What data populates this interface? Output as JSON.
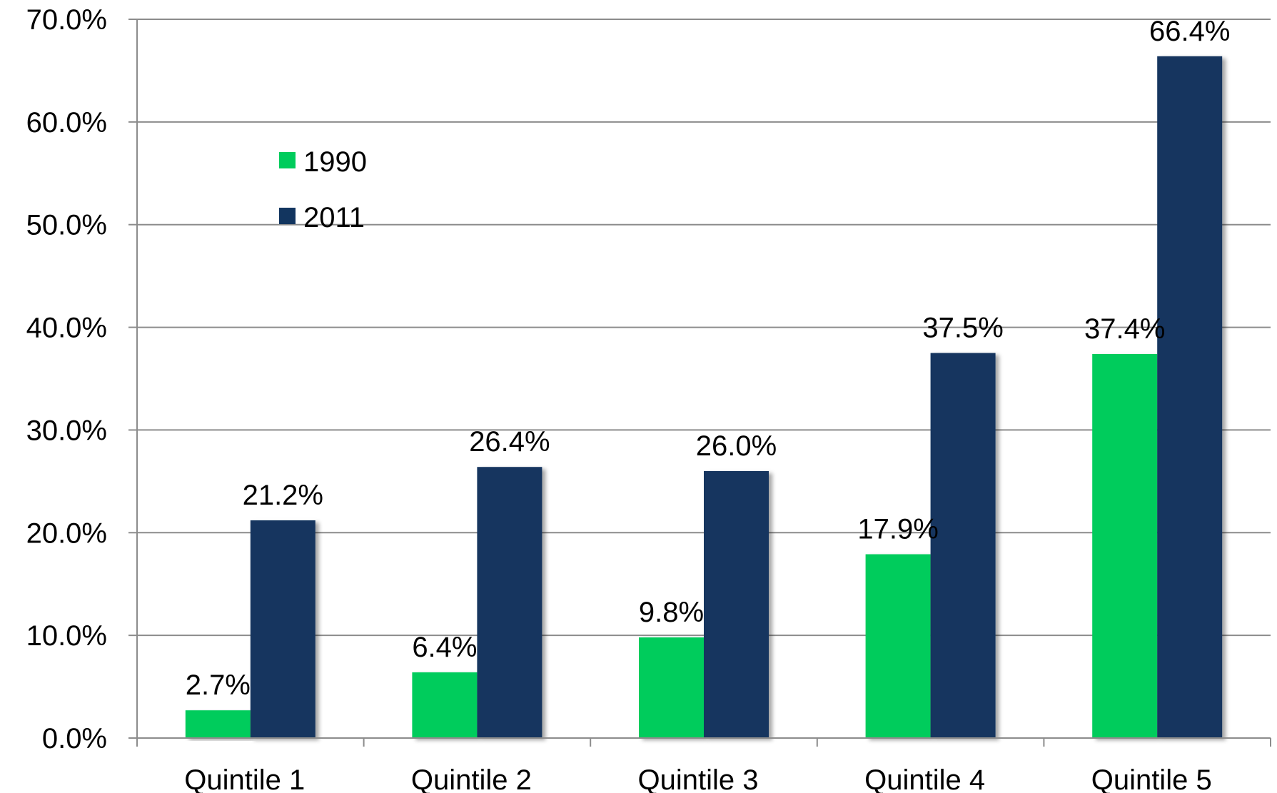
{
  "chart_data": {
    "type": "bar",
    "categories": [
      "Quintile 1",
      "Quintile 2",
      "Quintile 3",
      "Quintile 4",
      "Quintile 5"
    ],
    "series": [
      {
        "name": "1990",
        "color": "#00cc5c",
        "values": [
          2.7,
          6.4,
          9.8,
          17.9,
          37.4
        ],
        "labels": [
          "2.7%",
          "6.4%",
          "9.8%",
          "17.9%",
          "37.4%"
        ]
      },
      {
        "name": "2011",
        "color": "#12355f",
        "values": [
          21.2,
          26.4,
          26.0,
          37.5,
          66.4
        ],
        "labels": [
          "21.2%",
          "26.4%",
          "26.0%",
          "37.5%",
          "66.4%"
        ]
      }
    ],
    "ylim": [
      0,
      70
    ],
    "yticks": [
      "0.0%",
      "10.0%",
      "20.0%",
      "30.0%",
      "40.0%",
      "50.0%",
      "60.0%",
      "70.0%"
    ],
    "grid": true,
    "legend_position": "top-left"
  }
}
